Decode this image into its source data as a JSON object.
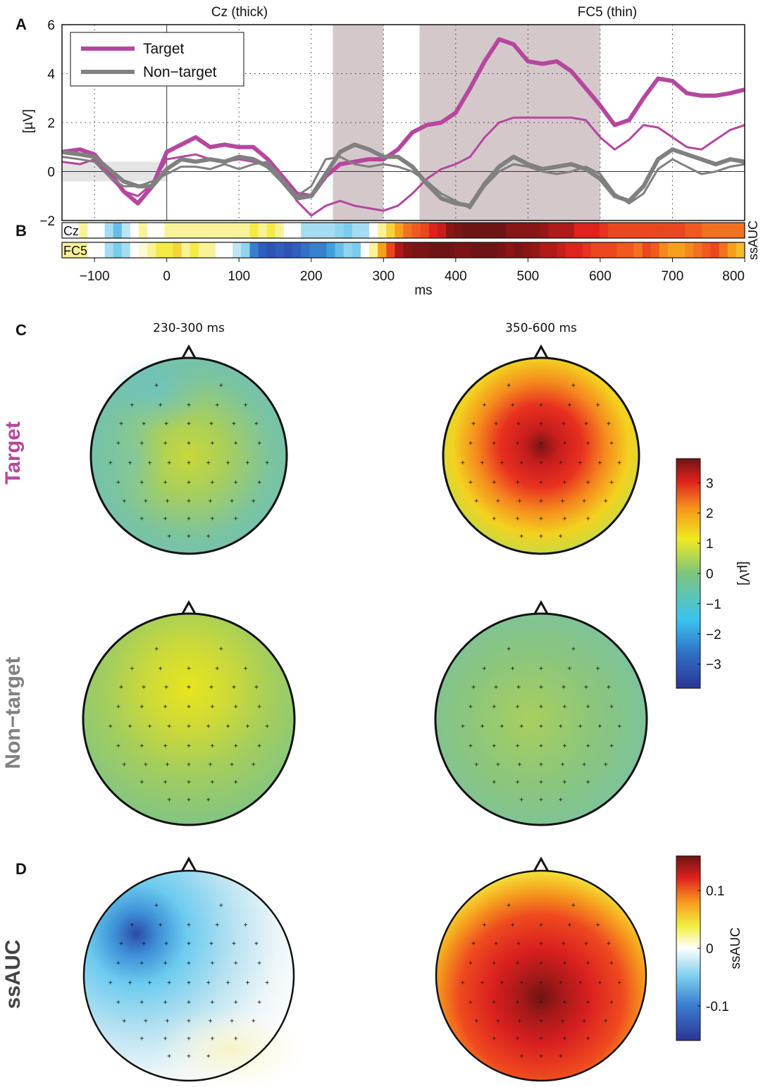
{
  "panel_letters": {
    "a": "A",
    "b": "B",
    "c": "C",
    "d": "D"
  },
  "colors": {
    "target": "#b5479f",
    "nontarget": "#808080",
    "shade": "#d5c8cb",
    "head_outline": "#111111"
  },
  "chart_data": [
    {
      "type": "line",
      "title_left": "Cz (thick)",
      "title_right": "FC5 (thin)",
      "xlabel": "ms",
      "ylabel": "[µV]",
      "xlim": [
        -145,
        800
      ],
      "ylim": [
        -2,
        6
      ],
      "x_ticks": [
        -100,
        0,
        100,
        200,
        300,
        400,
        500,
        600,
        700,
        800
      ],
      "x_tick_labels": [
        "−100",
        "0",
        "100",
        "200",
        "300",
        "400",
        "500",
        "600",
        "700",
        "800"
      ],
      "y_ticks": [
        -2,
        0,
        2,
        4,
        6
      ],
      "y_tick_labels": [
        "−2",
        "0",
        "2",
        "4",
        "6"
      ],
      "grid": true,
      "legend": {
        "placement": "top-left",
        "entries": [
          "Target",
          "Non−target"
        ]
      },
      "shaded_intervals": [
        [
          230,
          300
        ],
        [
          350,
          600
        ]
      ],
      "baseline_interval": [
        -145,
        0
      ],
      "x": [
        -145,
        -120,
        -100,
        -80,
        -60,
        -40,
        -20,
        0,
        20,
        40,
        60,
        80,
        100,
        120,
        140,
        160,
        180,
        200,
        220,
        240,
        260,
        280,
        300,
        320,
        340,
        360,
        380,
        400,
        420,
        440,
        460,
        480,
        500,
        520,
        540,
        560,
        580,
        600,
        620,
        640,
        660,
        680,
        700,
        720,
        740,
        760,
        780,
        800
      ],
      "series": [
        {
          "name": "Target",
          "channel": "Cz",
          "weight": "thick",
          "values": [
            0.8,
            0.9,
            0.7,
            0.0,
            -0.8,
            -1.3,
            -0.6,
            0.8,
            1.1,
            1.4,
            1.0,
            1.1,
            1.0,
            1.0,
            0.5,
            -0.2,
            -0.9,
            -1.0,
            -0.2,
            0.3,
            0.4,
            0.5,
            0.5,
            0.9,
            1.6,
            1.9,
            2.0,
            2.4,
            3.4,
            4.5,
            5.4,
            5.2,
            4.5,
            4.4,
            4.5,
            4.1,
            3.4,
            2.7,
            1.9,
            2.1,
            3.0,
            3.8,
            3.7,
            3.2,
            3.1,
            3.1,
            3.2,
            3.35
          ]
        },
        {
          "name": "Target",
          "channel": "FC5",
          "weight": "thin",
          "values": [
            0.4,
            0.3,
            0.5,
            -0.2,
            -0.8,
            -1.0,
            -0.5,
            0.5,
            0.6,
            0.7,
            0.5,
            0.4,
            0.5,
            0.4,
            0.3,
            -0.3,
            -1.2,
            -1.8,
            -1.4,
            -1.2,
            -1.4,
            -1.5,
            -1.6,
            -1.4,
            -0.9,
            -0.3,
            0.1,
            0.3,
            0.6,
            1.4,
            2.0,
            2.2,
            2.2,
            2.2,
            2.2,
            2.2,
            2.1,
            1.4,
            0.9,
            1.3,
            1.9,
            1.8,
            1.4,
            1.0,
            0.9,
            1.3,
            1.7,
            1.9
          ]
        },
        {
          "name": "Non−target",
          "channel": "Cz",
          "weight": "thick",
          "values": [
            0.8,
            0.7,
            0.6,
            0.1,
            -0.4,
            -0.6,
            -0.6,
            0.1,
            0.5,
            0.4,
            0.5,
            0.4,
            0.6,
            0.5,
            0.2,
            -0.4,
            -1.1,
            -1.0,
            -0.1,
            0.8,
            1.1,
            0.9,
            0.6,
            0.6,
            0.2,
            -0.5,
            -1.1,
            -1.3,
            -1.4,
            -0.5,
            0.2,
            0.6,
            0.3,
            0.1,
            0.2,
            0.3,
            0.1,
            -0.3,
            -1.0,
            -1.2,
            -0.6,
            0.5,
            0.9,
            0.7,
            0.5,
            0.3,
            0.5,
            0.4
          ]
        },
        {
          "name": "Non−target",
          "channel": "FC5",
          "weight": "thin",
          "values": [
            0.6,
            0.5,
            0.4,
            -0.2,
            -0.6,
            -0.6,
            -0.4,
            -0.1,
            0.2,
            0.2,
            0.1,
            0.3,
            0.1,
            0.3,
            0.4,
            -0.3,
            -1.0,
            -0.6,
            0.5,
            0.6,
            0.3,
            0.2,
            0.3,
            0.2,
            0.0,
            -0.4,
            -0.9,
            -1.2,
            -1.5,
            -0.6,
            0.0,
            0.3,
            0.2,
            0.0,
            -0.1,
            0.0,
            0.2,
            -0.1,
            -0.9,
            -1.3,
            -0.9,
            0.1,
            0.5,
            0.2,
            -0.1,
            0.0,
            0.2,
            0.3
          ]
        }
      ]
    },
    {
      "type": "heatmap",
      "panel": "B",
      "ylabel": "ssAUC",
      "rows": [
        {
          "label": "Cz",
          "values": [
            0.0,
            0.0,
            0.02,
            0.0,
            0.0,
            -0.03,
            -0.06,
            -0.02,
            0.0,
            0.02,
            0.0,
            0.0,
            0.02,
            0.02,
            0.02,
            0.02,
            0.02,
            0.02,
            0.02,
            0.02,
            0.02,
            0.02,
            0.03,
            0.02,
            0.03,
            0.02,
            0.0,
            0.0,
            -0.03,
            -0.03,
            -0.03,
            -0.03,
            -0.04,
            -0.05,
            -0.03,
            -0.03,
            0.0,
            0.02,
            0.04,
            0.06,
            0.08,
            0.09,
            0.1,
            0.12,
            0.13,
            0.16,
            0.17,
            0.18,
            0.18,
            0.18,
            0.18,
            0.18,
            0.16,
            0.16,
            0.16,
            0.16,
            0.15,
            0.14,
            0.14,
            0.14,
            0.12,
            0.12,
            0.12,
            0.11,
            0.1,
            0.1,
            0.1,
            0.1,
            0.1,
            0.1,
            0.1,
            0.1,
            0.1,
            0.09,
            0.09,
            0.08,
            0.08,
            0.08,
            0.08,
            0.08
          ]
        },
        {
          "label": "FC5",
          "values": [
            0.02,
            0.02,
            0.02,
            0.0,
            0.0,
            -0.03,
            -0.05,
            -0.03,
            0.0,
            0.01,
            0.02,
            0.03,
            0.03,
            0.04,
            0.02,
            0.03,
            0.02,
            0.02,
            0.0,
            0.0,
            -0.02,
            -0.04,
            -0.1,
            -0.12,
            -0.13,
            -0.12,
            -0.13,
            -0.12,
            -0.11,
            -0.1,
            -0.1,
            -0.08,
            -0.06,
            -0.04,
            -0.05,
            0.0,
            0.02,
            0.06,
            0.1,
            0.14,
            0.16,
            0.17,
            0.17,
            0.18,
            0.18,
            0.18,
            0.17,
            0.17,
            0.19,
            0.19,
            0.18,
            0.17,
            0.16,
            0.17,
            0.16,
            0.15,
            0.14,
            0.14,
            0.13,
            0.12,
            0.12,
            0.11,
            0.1,
            0.1,
            0.1,
            0.09,
            0.09,
            0.08,
            0.1,
            0.09,
            0.07,
            0.06,
            0.06,
            0.07,
            0.08,
            0.09,
            0.1,
            0.08,
            0.06,
            0.05
          ]
        }
      ]
    },
    {
      "type": "heatmap",
      "panel": "C",
      "description": "scalp topographies",
      "column_titles": [
        "230-300 ms",
        "350-600 ms"
      ],
      "row_labels": [
        "Target",
        "Non−target"
      ],
      "colorbar": {
        "label": "[µV]",
        "range": [
          -3.8,
          3.8
        ],
        "ticks": [
          3,
          2,
          1,
          0,
          -1,
          -2,
          -3
        ],
        "tick_labels": [
          "3",
          "2",
          "1",
          "0",
          "−1",
          "−2",
          "−3"
        ]
      },
      "maps": [
        {
          "row": "Target",
          "window": "230-300 ms",
          "center_value": 0.8,
          "min_value": -1.3
        },
        {
          "row": "Target",
          "window": "350-600 ms",
          "center_value": 3.6,
          "min_value": 0.5
        },
        {
          "row": "Non−target",
          "window": "230-300 ms",
          "center_value": 1.0,
          "min_value": -0.2
        },
        {
          "row": "Non−target",
          "window": "350-600 ms",
          "center_value": 0.4,
          "min_value": -0.6
        }
      ]
    },
    {
      "type": "heatmap",
      "panel": "D",
      "row_label": "ssAUC",
      "colorbar": {
        "label": "ssAUC",
        "range": [
          -0.16,
          0.16
        ],
        "ticks": [
          0.1,
          0,
          -0.1
        ],
        "tick_labels": [
          "0.1",
          "0",
          "-0.1"
        ]
      },
      "maps": [
        {
          "window": "230-300 ms",
          "min_value": -0.14,
          "max_value": 0.03
        },
        {
          "window": "350-600 ms",
          "min_value": 0.03,
          "max_value": 0.18
        }
      ]
    }
  ]
}
